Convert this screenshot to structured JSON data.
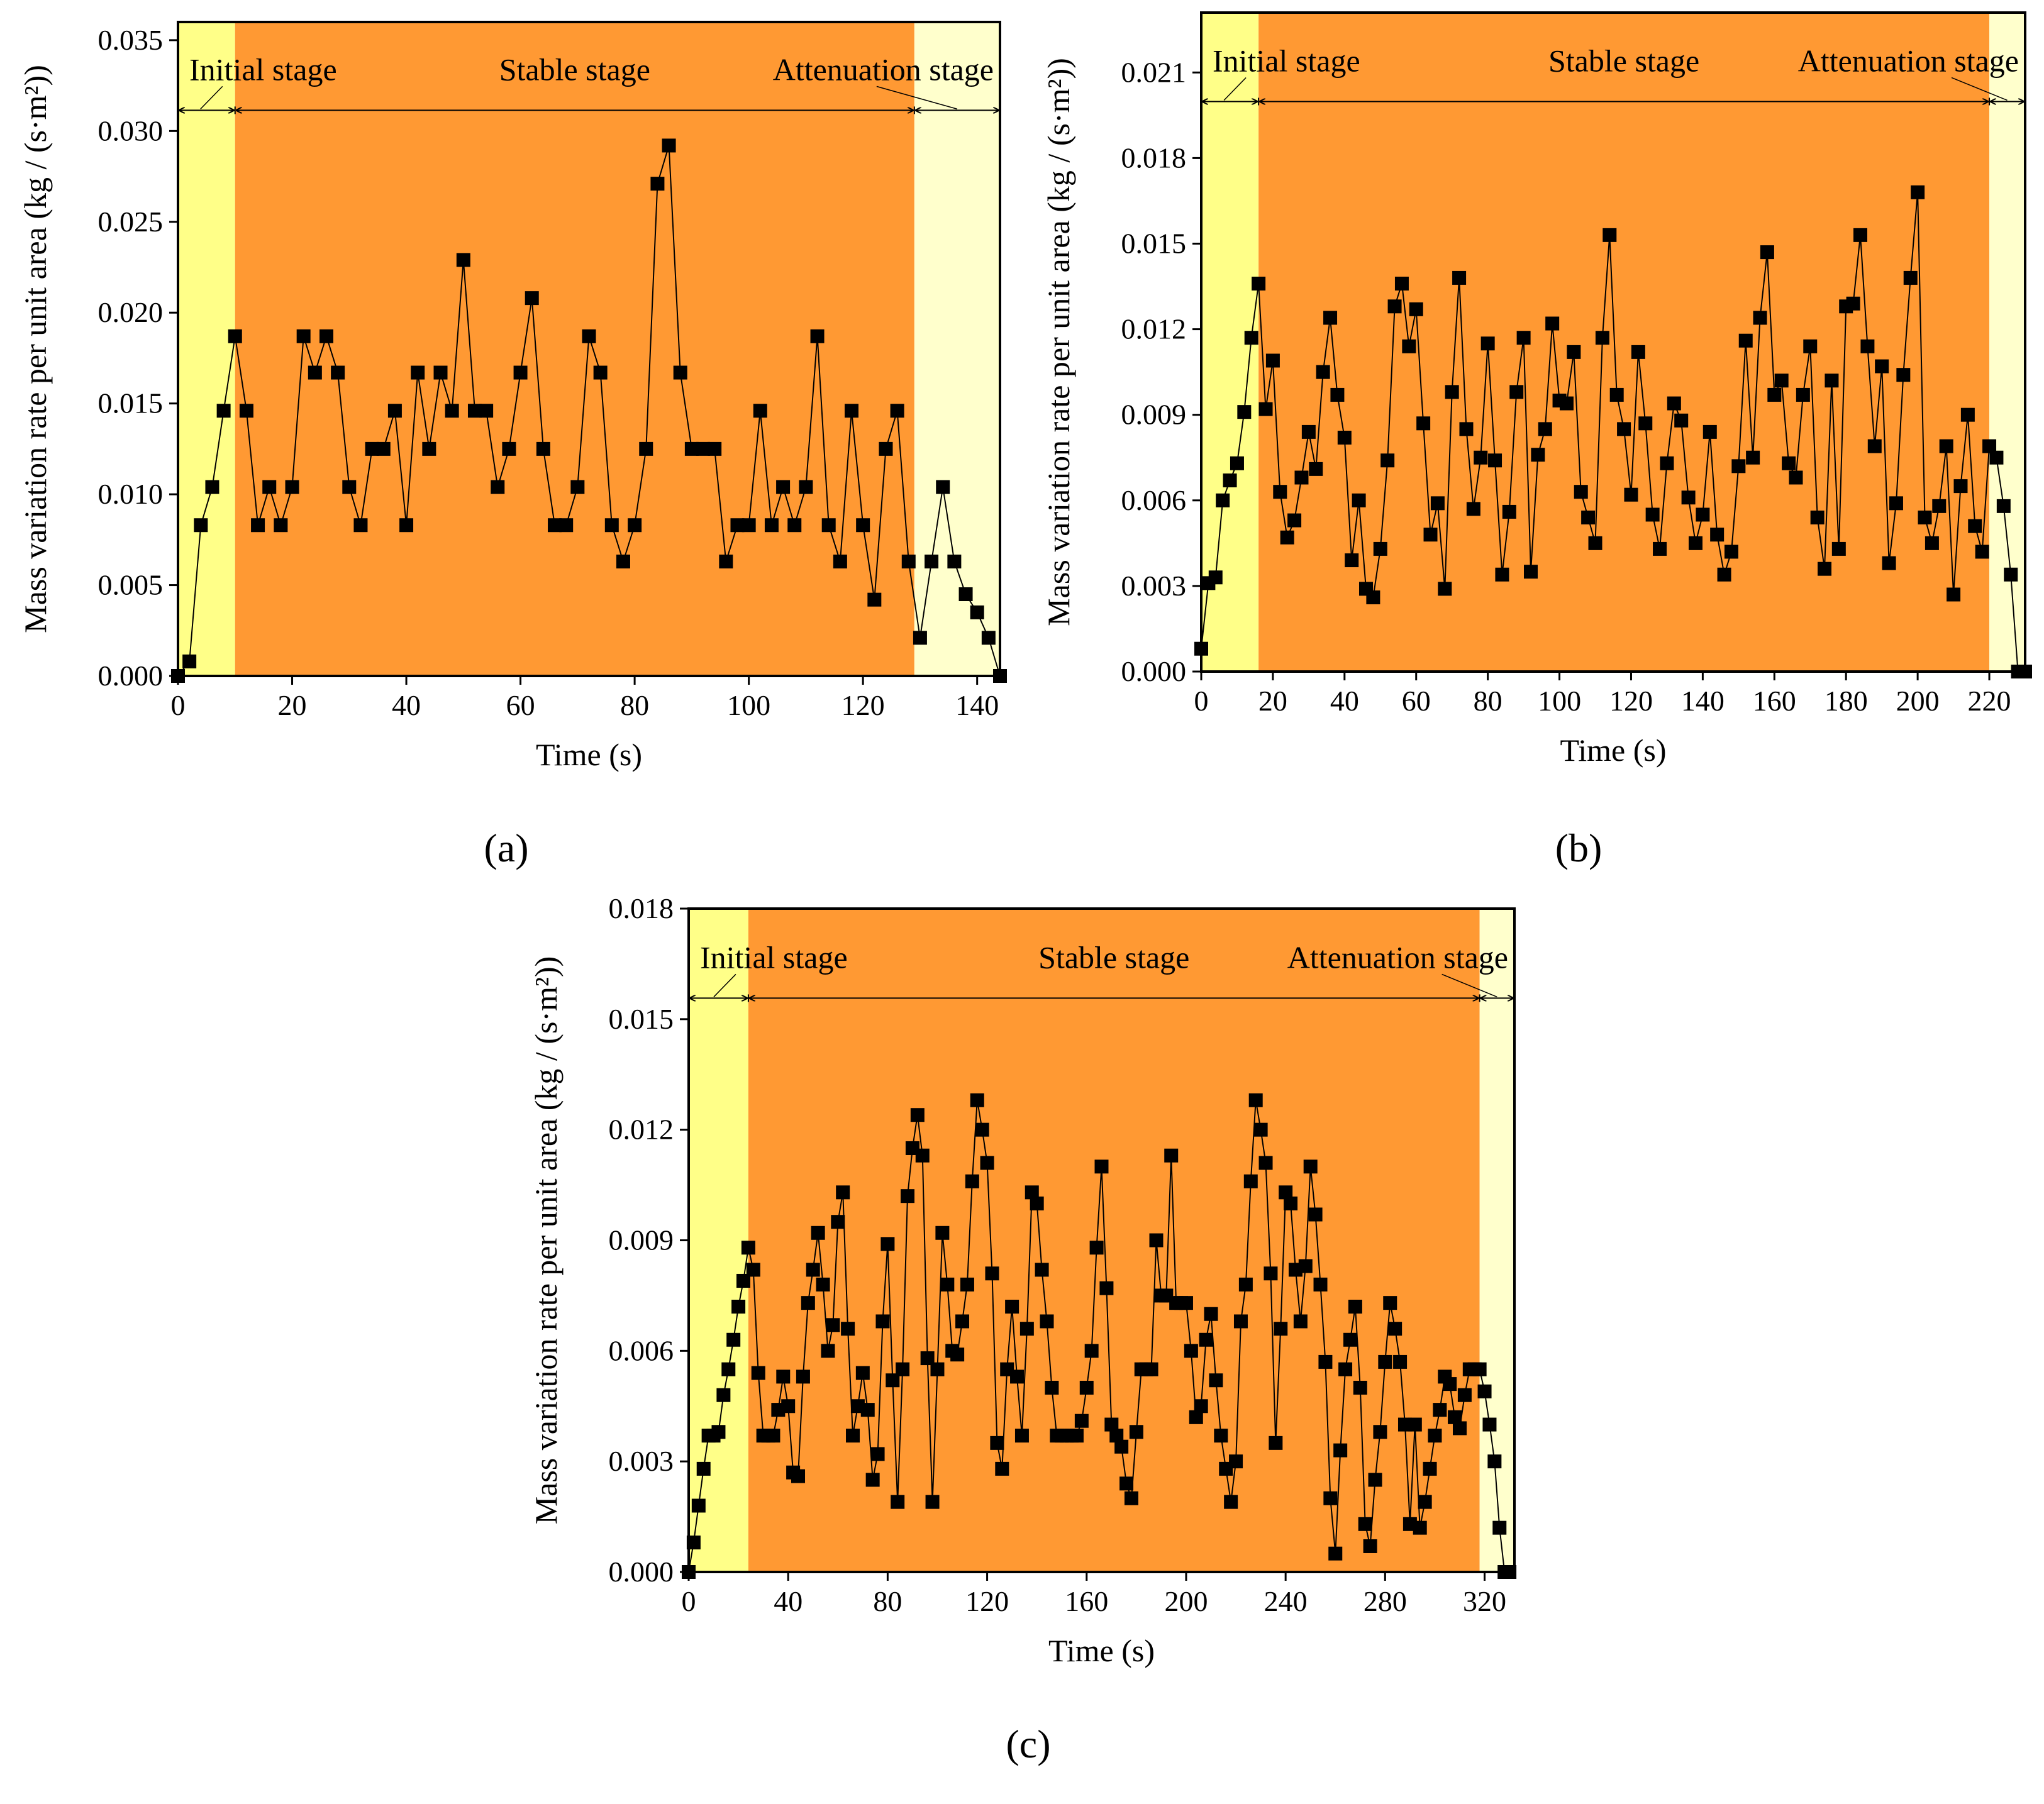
{
  "colors": {
    "initial": "#FFFF88",
    "stable": "#FF9933",
    "attenuation": "#FFFFCC",
    "marker": "#000000",
    "line": "#000000"
  },
  "chart_data": [
    {
      "type": "scatter",
      "panel_label": "(a)",
      "xlabel": "Time (s)",
      "ylabel": "Mass variation rate per unit area (kg / (s·m²))",
      "xlim": [
        0,
        144
      ],
      "ylim": [
        0,
        0.036
      ],
      "xticks": [
        0,
        20,
        40,
        60,
        80,
        100,
        120,
        140
      ],
      "xtick_labels": [
        "0",
        "20",
        "40",
        "60",
        "80",
        "100",
        "120",
        "140"
      ],
      "yticks": [
        0,
        0.005,
        0.01,
        0.015,
        0.02,
        0.025,
        0.03,
        0.035
      ],
      "ytick_labels": [
        "0.000",
        "0.005",
        "0.010",
        "0.015",
        "0.020",
        "0.025",
        "0.030",
        "0.035"
      ],
      "stages": [
        {
          "name": "Initial stage",
          "start": 0,
          "end": 10
        },
        {
          "name": "Stable stage",
          "start": 10,
          "end": 129
        },
        {
          "name": "Attenuation stage",
          "start": 129,
          "end": 144
        }
      ],
      "x": [
        0,
        2,
        4,
        6,
        8,
        10,
        12,
        14,
        16,
        18,
        20,
        22,
        24,
        26,
        28,
        30,
        32,
        34,
        36,
        38,
        40,
        42,
        44,
        46,
        48,
        50,
        52,
        54,
        56,
        58,
        60,
        62,
        64,
        66,
        68,
        70,
        72,
        74,
        76,
        78,
        80,
        82,
        84,
        86,
        88,
        90,
        92,
        94,
        96,
        98,
        100,
        102,
        104,
        106,
        108,
        110,
        112,
        114,
        116,
        118,
        120,
        122,
        124,
        126,
        128,
        130,
        132,
        134,
        136,
        138,
        140,
        142,
        144
      ],
      "y": [
        0,
        0.0008,
        0.0083,
        0.0104,
        0.0146,
        0.0187,
        0.0146,
        0.0083,
        0.0104,
        0.0083,
        0.0104,
        0.0187,
        0.0167,
        0.0187,
        0.0167,
        0.0104,
        0.0083,
        0.0125,
        0.0125,
        0.0146,
        0.0083,
        0.0167,
        0.0125,
        0.0167,
        0.0146,
        0.0229,
        0.0146,
        0.0146,
        0.0104,
        0.0125,
        0.0167,
        0.0208,
        0.0125,
        0.0083,
        0.0083,
        0.0104,
        0.0187,
        0.0167,
        0.0083,
        0.0063,
        0.0083,
        0.0125,
        0.0271,
        0.0292,
        0.0167,
        0.0125,
        0.0125,
        0.0125,
        0.0063,
        0.0083,
        0.0083,
        0.0146,
        0.0083,
        0.0104,
        0.0083,
        0.0104,
        0.0187,
        0.0083,
        0.0063,
        0.0146,
        0.0083,
        0.0042,
        0.0125,
        0.0146,
        0.0063,
        0.0021,
        0.0063,
        0.0104,
        0.0063,
        0.0045,
        0.0035,
        0.0021,
        0
      ]
    },
    {
      "type": "scatter",
      "panel_label": "(b)",
      "xlabel": "Time (s)",
      "ylabel": "Mass variation rate per unit area (kg / (s·m²))",
      "xlim": [
        0,
        230
      ],
      "ylim": [
        0,
        0.0231
      ],
      "xticks": [
        0,
        20,
        40,
        60,
        80,
        100,
        120,
        140,
        160,
        180,
        200,
        220
      ],
      "xtick_labels": [
        "0",
        "20",
        "40",
        "60",
        "80",
        "100",
        "120",
        "140",
        "160",
        "180",
        "200",
        "220"
      ],
      "yticks": [
        0,
        0.003,
        0.006,
        0.009,
        0.012,
        0.015,
        0.018,
        0.021
      ],
      "ytick_labels": [
        "0.000",
        "0.003",
        "0.006",
        "0.009",
        "0.012",
        "0.015",
        "0.018",
        "0.021"
      ],
      "stages": [
        {
          "name": "Initial stage",
          "start": 0,
          "end": 16
        },
        {
          "name": "Stable stage",
          "start": 16,
          "end": 220
        },
        {
          "name": "Attenuation stage",
          "start": 220,
          "end": 230
        }
      ],
      "x": [
        0,
        2,
        4,
        6,
        8,
        10,
        12,
        14,
        16,
        18,
        20,
        22,
        24,
        26,
        28,
        30,
        32,
        34,
        36,
        38,
        40,
        42,
        44,
        46,
        48,
        50,
        52,
        54,
        56,
        58,
        60,
        62,
        64,
        66,
        68,
        70,
        72,
        74,
        76,
        78,
        80,
        82,
        84,
        86,
        88,
        90,
        92,
        94,
        96,
        98,
        100,
        102,
        104,
        106,
        108,
        110,
        112,
        114,
        116,
        118,
        120,
        122,
        124,
        126,
        128,
        130,
        132,
        134,
        136,
        138,
        140,
        142,
        144,
        146,
        148,
        150,
        152,
        154,
        156,
        158,
        160,
        162,
        164,
        166,
        168,
        170,
        172,
        174,
        176,
        178,
        180,
        182,
        184,
        186,
        188,
        190,
        192,
        194,
        196,
        198,
        200,
        202,
        204,
        206,
        208,
        210,
        212,
        214,
        216,
        218,
        220,
        222,
        224,
        226,
        228,
        230
      ],
      "y": [
        0.0008,
        0.0031,
        0.0033,
        0.006,
        0.0067,
        0.0073,
        0.0091,
        0.0117,
        0.0136,
        0.0092,
        0.0109,
        0.0063,
        0.0047,
        0.0053,
        0.0068,
        0.0084,
        0.0071,
        0.0105,
        0.0124,
        0.0097,
        0.0082,
        0.0039,
        0.006,
        0.0029,
        0.0026,
        0.0043,
        0.0074,
        0.0128,
        0.0136,
        0.0114,
        0.0127,
        0.0087,
        0.0048,
        0.0059,
        0.0029,
        0.0098,
        0.0138,
        0.0085,
        0.0057,
        0.0075,
        0.0115,
        0.0074,
        0.0034,
        0.0056,
        0.0098,
        0.0117,
        0.0035,
        0.0076,
        0.0085,
        0.0122,
        0.0095,
        0.0094,
        0.0112,
        0.0063,
        0.0054,
        0.0045,
        0.0117,
        0.0153,
        0.0097,
        0.0085,
        0.0062,
        0.0112,
        0.0087,
        0.0055,
        0.0043,
        0.0073,
        0.0094,
        0.0088,
        0.0061,
        0.0045,
        0.0055,
        0.0084,
        0.0048,
        0.0034,
        0.0042,
        0.0072,
        0.0116,
        0.0075,
        0.0124,
        0.0147,
        0.0097,
        0.0102,
        0.0073,
        0.0068,
        0.0097,
        0.0114,
        0.0054,
        0.0036,
        0.0102,
        0.0043,
        0.0128,
        0.0129,
        0.0153,
        0.0114,
        0.0079,
        0.0107,
        0.0038,
        0.0059,
        0.0104,
        0.0138,
        0.0168,
        0.0054,
        0.0045,
        0.0058,
        0.0079,
        0.0027,
        0.0065,
        0.009,
        0.0051,
        0.0042,
        0.0079,
        0.0075,
        0.0058,
        0.0034,
        0.0,
        0.0
      ]
    },
    {
      "type": "scatter",
      "panel_label": "(c)",
      "xlabel": "Time (s)",
      "ylabel": "Mass variation rate per unit area (kg / (s·m²))",
      "xlim": [
        0,
        332
      ],
      "ylim": [
        0,
        0.018
      ],
      "xticks": [
        0,
        40,
        80,
        120,
        160,
        200,
        240,
        280,
        320
      ],
      "xtick_labels": [
        "0",
        "40",
        "80",
        "120",
        "160",
        "200",
        "240",
        "280",
        "320"
      ],
      "yticks": [
        0,
        0.003,
        0.006,
        0.009,
        0.012,
        0.015,
        0.018
      ],
      "ytick_labels": [
        "0.000",
        "0.003",
        "0.006",
        "0.009",
        "0.012",
        "0.015",
        "0.018"
      ],
      "stages": [
        {
          "name": "Initial stage",
          "start": 0,
          "end": 24
        },
        {
          "name": "Stable stage",
          "start": 24,
          "end": 318
        },
        {
          "name": "Attenuation stage",
          "start": 318,
          "end": 332
        }
      ],
      "x": [
        0,
        2,
        4,
        6,
        8,
        10,
        12,
        14,
        16,
        18,
        20,
        22,
        24,
        26,
        28,
        30,
        32,
        34,
        36,
        38,
        40,
        42,
        44,
        46,
        48,
        50,
        52,
        54,
        56,
        58,
        60,
        62,
        64,
        66,
        68,
        70,
        72,
        74,
        76,
        78,
        80,
        82,
        84,
        86,
        88,
        90,
        92,
        94,
        96,
        98,
        100,
        102,
        104,
        106,
        108,
        110,
        112,
        114,
        116,
        118,
        120,
        122,
        124,
        126,
        128,
        130,
        132,
        134,
        136,
        138,
        140,
        142,
        144,
        146,
        148,
        150,
        152,
        154,
        156,
        158,
        160,
        162,
        164,
        166,
        168,
        170,
        172,
        174,
        176,
        178,
        180,
        182,
        184,
        186,
        188,
        190,
        192,
        194,
        196,
        198,
        200,
        202,
        204,
        206,
        208,
        210,
        212,
        214,
        216,
        218,
        220,
        222,
        224,
        226,
        228,
        230,
        232,
        234,
        236,
        238,
        240,
        242,
        244,
        246,
        248,
        250,
        252,
        254,
        256,
        258,
        260,
        262,
        264,
        266,
        268,
        270,
        272,
        274,
        276,
        278,
        280,
        282,
        284,
        286,
        288,
        290,
        292,
        294,
        296,
        298,
        300,
        302,
        304,
        306,
        308,
        310,
        312,
        314,
        316,
        318,
        320,
        322,
        324,
        326,
        328,
        330
      ],
      "y": [
        0,
        0.0008,
        0.0018,
        0.0028,
        0.0037,
        0.0037,
        0.0038,
        0.0048,
        0.0055,
        0.0063,
        0.0072,
        0.0079,
        0.0088,
        0.0082,
        0.0054,
        0.0037,
        0.0037,
        0.0037,
        0.0044,
        0.0053,
        0.0045,
        0.0027,
        0.0026,
        0.0053,
        0.0073,
        0.0082,
        0.0092,
        0.0078,
        0.006,
        0.0067,
        0.0095,
        0.0103,
        0.0066,
        0.0037,
        0.0045,
        0.0054,
        0.0044,
        0.0025,
        0.0032,
        0.0068,
        0.0089,
        0.0052,
        0.0019,
        0.0055,
        0.0102,
        0.0115,
        0.0124,
        0.0113,
        0.0058,
        0.0019,
        0.0055,
        0.0092,
        0.0078,
        0.006,
        0.0059,
        0.0068,
        0.0078,
        0.0106,
        0.0128,
        0.012,
        0.0111,
        0.0081,
        0.0035,
        0.0028,
        0.0055,
        0.0072,
        0.0053,
        0.0037,
        0.0066,
        0.0103,
        0.01,
        0.0082,
        0.0068,
        0.005,
        0.0037,
        0.0037,
        0.0037,
        0.0037,
        0.0037,
        0.0041,
        0.005,
        0.006,
        0.0088,
        0.011,
        0.0077,
        0.004,
        0.0037,
        0.0034,
        0.0024,
        0.002,
        0.0038,
        0.0055,
        0.0055,
        0.0055,
        0.009,
        0.0075,
        0.0075,
        0.0113,
        0.0073,
        0.0073,
        0.0073,
        0.006,
        0.0042,
        0.0045,
        0.0063,
        0.007,
        0.0052,
        0.0037,
        0.0028,
        0.0019,
        0.003,
        0.0068,
        0.0078,
        0.0106,
        0.0128,
        0.012,
        0.0111,
        0.0081,
        0.0035,
        0.0066,
        0.0103,
        0.01,
        0.0082,
        0.0068,
        0.0083,
        0.011,
        0.0097,
        0.0078,
        0.0057,
        0.002,
        0.0005,
        0.0033,
        0.0055,
        0.0063,
        0.0072,
        0.005,
        0.0013,
        0.0007,
        0.0025,
        0.0038,
        0.0057,
        0.0073,
        0.0066,
        0.0057,
        0.004,
        0.0013,
        0.004,
        0.0012,
        0.0019,
        0.0028,
        0.0037,
        0.0044,
        0.0053,
        0.0051,
        0.0042,
        0.0039,
        0.0048,
        0.0055,
        0.0055,
        0.0055,
        0.0049,
        0.004,
        0.003,
        0.0012,
        0.0,
        0.0
      ]
    }
  ]
}
